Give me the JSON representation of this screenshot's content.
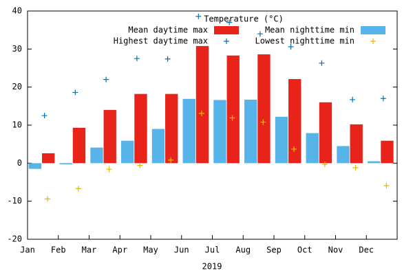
{
  "chart_data": {
    "type": "bar",
    "legend_title": "Temperature (°C)",
    "xlabel": "2019",
    "categories": [
      "Jan",
      "Feb",
      "Mar",
      "Apr",
      "May",
      "Jun",
      "Jul",
      "Aug",
      "Sep",
      "Oct",
      "Nov",
      "Dec"
    ],
    "series": [
      {
        "name": "Mean daytime max",
        "color": "#e8231a",
        "kind": "bar",
        "values": [
          2.6,
          9.3,
          14.0,
          18.2,
          18.2,
          30.8,
          28.3,
          28.6,
          22.1,
          16.0,
          10.2,
          5.9
        ]
      },
      {
        "name": "Mean nighttime min",
        "color": "#56b4e9",
        "kind": "bar",
        "values": [
          -1.5,
          -0.3,
          4.1,
          5.9,
          9.0,
          16.9,
          16.6,
          16.7,
          12.2,
          7.9,
          4.5,
          0.5
        ]
      },
      {
        "name": "Highest daytime max",
        "color": "#0072b2",
        "kind": "point",
        "values": [
          12.5,
          18.6,
          22.0,
          27.5,
          27.4,
          38.6,
          37.0,
          34.0,
          30.6,
          26.3,
          16.7,
          17.0
        ]
      },
      {
        "name": "Lowest nighttime min",
        "color": "#e6b800",
        "kind": "point",
        "values": [
          -9.4,
          -6.7,
          -1.6,
          -0.6,
          0.8,
          13.1,
          11.9,
          10.8,
          3.7,
          -0.3,
          -1.2,
          -5.9
        ]
      }
    ],
    "ylim": [
      -20,
      40
    ],
    "yticks": [
      -20,
      -10,
      0,
      10,
      20,
      30,
      40
    ]
  }
}
